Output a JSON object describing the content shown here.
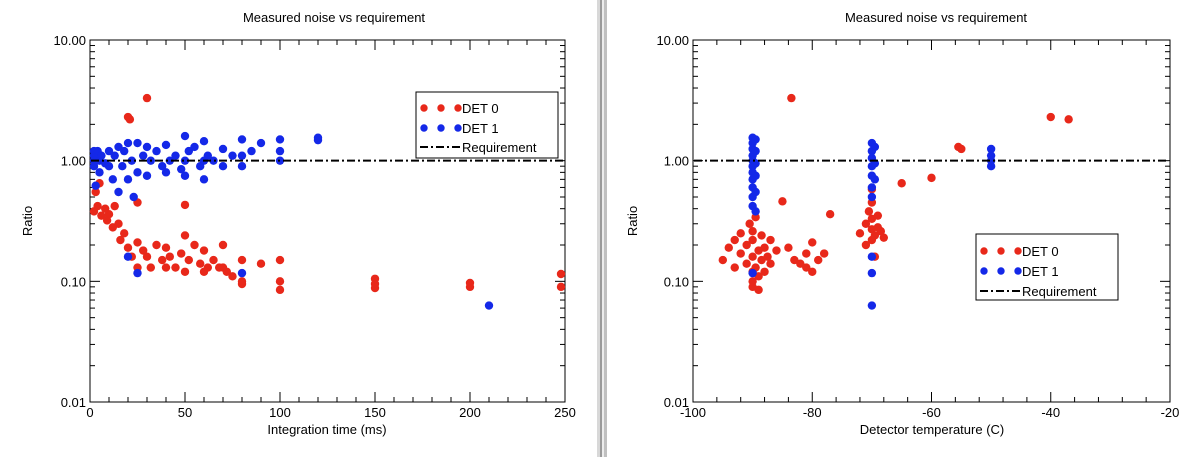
{
  "chart_data": [
    {
      "type": "scatter",
      "title": "Measured noise vs requirement",
      "xlabel": "Integration time (ms)",
      "ylabel": "Ratio",
      "xlim": [
        0,
        250
      ],
      "ylim": [
        0.01,
        10
      ],
      "yscale": "log",
      "xticks": [
        "0",
        "50",
        "100",
        "150",
        "200",
        "250"
      ],
      "yticks": [
        "10.00",
        "1.00",
        "0.10",
        "0.01"
      ],
      "legend": {
        "position": "top-right",
        "entries": [
          "DET 0",
          "DET 1",
          "Requirement"
        ]
      },
      "requirement": 1.0,
      "series": [
        {
          "name": "DET 0",
          "color": "#e8281a",
          "points": [
            [
              2,
              0.38
            ],
            [
              3,
              0.55
            ],
            [
              4,
              0.42
            ],
            [
              5,
              0.65
            ],
            [
              6,
              0.35
            ],
            [
              8,
              0.4
            ],
            [
              9,
              0.32
            ],
            [
              10,
              0.36
            ],
            [
              12,
              0.28
            ],
            [
              13,
              0.42
            ],
            [
              15,
              0.3
            ],
            [
              16,
              0.22
            ],
            [
              18,
              0.25
            ],
            [
              20,
              0.19
            ],
            [
              20,
              2.3
            ],
            [
              21,
              2.2
            ],
            [
              22,
              0.16
            ],
            [
              25,
              0.21
            ],
            [
              25,
              0.13
            ],
            [
              25,
              0.45
            ],
            [
              28,
              0.18
            ],
            [
              30,
              3.3
            ],
            [
              30,
              0.16
            ],
            [
              32,
              0.13
            ],
            [
              35,
              0.2
            ],
            [
              38,
              0.15
            ],
            [
              40,
              0.19
            ],
            [
              40,
              0.13
            ],
            [
              42,
              0.16
            ],
            [
              45,
              0.13
            ],
            [
              48,
              0.17
            ],
            [
              50,
              0.24
            ],
            [
              50,
              0.12
            ],
            [
              50,
              0.43
            ],
            [
              52,
              0.15
            ],
            [
              55,
              0.2
            ],
            [
              58,
              0.14
            ],
            [
              60,
              0.18
            ],
            [
              60,
              0.12
            ],
            [
              62,
              0.13
            ],
            [
              65,
              0.15
            ],
            [
              68,
              0.13
            ],
            [
              70,
              0.2
            ],
            [
              70,
              0.13
            ],
            [
              72,
              0.12
            ],
            [
              75,
              0.11
            ],
            [
              80,
              0.15
            ],
            [
              80,
              0.1
            ],
            [
              80,
              0.095
            ],
            [
              90,
              0.14
            ],
            [
              100,
              0.15
            ],
            [
              100,
              0.1
            ],
            [
              100,
              0.085
            ],
            [
              150,
              0.105
            ],
            [
              150,
              0.095
            ],
            [
              150,
              0.088
            ],
            [
              200,
              0.097
            ],
            [
              200,
              0.09
            ],
            [
              250,
              0.115
            ],
            [
              250,
              0.09
            ]
          ]
        },
        {
          "name": "DET 1",
          "color": "#1428e8",
          "points": [
            [
              0,
              1.1
            ],
            [
              0,
              1.2
            ],
            [
              1,
              1.0
            ],
            [
              2,
              0.9
            ],
            [
              3,
              0.62
            ],
            [
              4,
              1.2
            ],
            [
              5,
              1.0
            ],
            [
              5,
              0.8
            ],
            [
              6,
              1.1
            ],
            [
              8,
              0.95
            ],
            [
              10,
              1.2
            ],
            [
              10,
              0.9
            ],
            [
              12,
              0.7
            ],
            [
              13,
              1.1
            ],
            [
              15,
              1.3
            ],
            [
              15,
              0.55
            ],
            [
              17,
              0.9
            ],
            [
              18,
              1.2
            ],
            [
              20,
              1.4
            ],
            [
              20,
              0.7
            ],
            [
              20,
              0.16
            ],
            [
              22,
              1.0
            ],
            [
              23,
              0.5
            ],
            [
              25,
              1.4
            ],
            [
              25,
              0.8
            ],
            [
              25,
              0.117
            ],
            [
              28,
              1.1
            ],
            [
              30,
              1.3
            ],
            [
              30,
              0.75
            ],
            [
              32,
              1.0
            ],
            [
              35,
              1.2
            ],
            [
              38,
              0.9
            ],
            [
              40,
              1.35
            ],
            [
              40,
              0.8
            ],
            [
              42,
              1.0
            ],
            [
              45,
              1.1
            ],
            [
              48,
              0.85
            ],
            [
              50,
              1.6
            ],
            [
              50,
              1.0
            ],
            [
              50,
              0.75
            ],
            [
              52,
              1.2
            ],
            [
              55,
              1.3
            ],
            [
              58,
              0.9
            ],
            [
              60,
              1.45
            ],
            [
              60,
              1.0
            ],
            [
              60,
              0.7
            ],
            [
              62,
              1.1
            ],
            [
              65,
              1.0
            ],
            [
              70,
              1.25
            ],
            [
              70,
              0.9
            ],
            [
              75,
              1.1
            ],
            [
              80,
              1.5
            ],
            [
              80,
              1.1
            ],
            [
              80,
              0.9
            ],
            [
              80,
              0.117
            ],
            [
              85,
              1.2
            ],
            [
              90,
              1.4
            ],
            [
              100,
              1.5
            ],
            [
              100,
              1.2
            ],
            [
              100,
              1.0
            ],
            [
              120,
              1.55
            ],
            [
              120,
              1.48
            ],
            [
              210,
              0.063
            ]
          ]
        }
      ]
    },
    {
      "type": "scatter",
      "title": "Measured noise vs requirement",
      "xlabel": "Detector temperature (C)",
      "ylabel": "Ratio",
      "xlim": [
        -100,
        -20
      ],
      "ylim": [
        0.01,
        10
      ],
      "yscale": "log",
      "xticks": [
        "-100",
        "-80",
        "-60",
        "-40",
        "-20"
      ],
      "yticks": [
        "10.00",
        "1.00",
        "0.10",
        "0.01"
      ],
      "legend": {
        "position": "center-right",
        "entries": [
          "DET 0",
          "DET 1",
          "Requirement"
        ]
      },
      "requirement": 1.0,
      "series": [
        {
          "name": "DET 0",
          "color": "#e8281a",
          "points": [
            [
              -95,
              0.15
            ],
            [
              -94,
              0.19
            ],
            [
              -93,
              0.13
            ],
            [
              -93,
              0.22
            ],
            [
              -92,
              0.17
            ],
            [
              -92,
              0.25
            ],
            [
              -91,
              0.14
            ],
            [
              -91,
              0.2
            ],
            [
              -90.5,
              0.3
            ],
            [
              -90,
              0.12
            ],
            [
              -90,
              0.16
            ],
            [
              -90,
              0.22
            ],
            [
              -90,
              0.26
            ],
            [
              -90,
              0.1
            ],
            [
              -90,
              0.09
            ],
            [
              -89.5,
              0.34
            ],
            [
              -89.5,
              0.13
            ],
            [
              -89,
              0.18
            ],
            [
              -89,
              0.085
            ],
            [
              -89,
              0.11
            ],
            [
              -88.5,
              0.15
            ],
            [
              -88.5,
              0.24
            ],
            [
              -88,
              0.19
            ],
            [
              -88,
              0.12
            ],
            [
              -87.5,
              0.16
            ],
            [
              -87,
              0.22
            ],
            [
              -87,
              0.14
            ],
            [
              -86,
              0.18
            ],
            [
              -85,
              0.46
            ],
            [
              -84,
              0.19
            ],
            [
              -83.5,
              3.3
            ],
            [
              -83,
              0.15
            ],
            [
              -82,
              0.14
            ],
            [
              -81,
              0.13
            ],
            [
              -81,
              0.17
            ],
            [
              -80,
              0.21
            ],
            [
              -80,
              0.12
            ],
            [
              -79,
              0.15
            ],
            [
              -78,
              0.17
            ],
            [
              -77,
              0.36
            ],
            [
              -72,
              0.25
            ],
            [
              -71,
              0.2
            ],
            [
              -71,
              0.3
            ],
            [
              -70.5,
              0.38
            ],
            [
              -70,
              0.22
            ],
            [
              -70,
              0.27
            ],
            [
              -70,
              0.33
            ],
            [
              -70,
              0.45
            ],
            [
              -70,
              0.58
            ],
            [
              -69.5,
              0.24
            ],
            [
              -69.5,
              0.16
            ],
            [
              -69,
              0.28
            ],
            [
              -69,
              0.35
            ],
            [
              -68.5,
              0.26
            ],
            [
              -68,
              0.23
            ],
            [
              -65,
              0.65
            ],
            [
              -60,
              0.72
            ],
            [
              -55.5,
              1.3
            ],
            [
              -55,
              1.25
            ],
            [
              -40,
              2.3
            ],
            [
              -37,
              2.2
            ]
          ]
        },
        {
          "name": "DET 1",
          "color": "#1428e8",
          "points": [
            [
              -90,
              1.55
            ],
            [
              -90,
              1.4
            ],
            [
              -90,
              1.25
            ],
            [
              -90,
              1.1
            ],
            [
              -90,
              1.0
            ],
            [
              -90,
              0.9
            ],
            [
              -90,
              0.8
            ],
            [
              -90,
              0.7
            ],
            [
              -90,
              0.6
            ],
            [
              -90,
              0.5
            ],
            [
              -90,
              0.42
            ],
            [
              -89.5,
              1.5
            ],
            [
              -89.5,
              1.2
            ],
            [
              -89.5,
              0.95
            ],
            [
              -89.5,
              0.75
            ],
            [
              -89.5,
              0.55
            ],
            [
              -89.5,
              0.38
            ],
            [
              -90,
              0.117
            ],
            [
              -70,
              1.4
            ],
            [
              -70,
              1.2
            ],
            [
              -70,
              1.05
            ],
            [
              -70,
              0.9
            ],
            [
              -70,
              0.75
            ],
            [
              -70,
              0.6
            ],
            [
              -70,
              0.5
            ],
            [
              -69.5,
              1.3
            ],
            [
              -69.5,
              0.95
            ],
            [
              -69.5,
              0.7
            ],
            [
              -70,
              0.16
            ],
            [
              -70,
              0.117
            ],
            [
              -70,
              0.063
            ],
            [
              -50,
              1.25
            ],
            [
              -50,
              1.1
            ],
            [
              -50,
              1.0
            ],
            [
              -50,
              0.9
            ]
          ]
        }
      ]
    }
  ]
}
